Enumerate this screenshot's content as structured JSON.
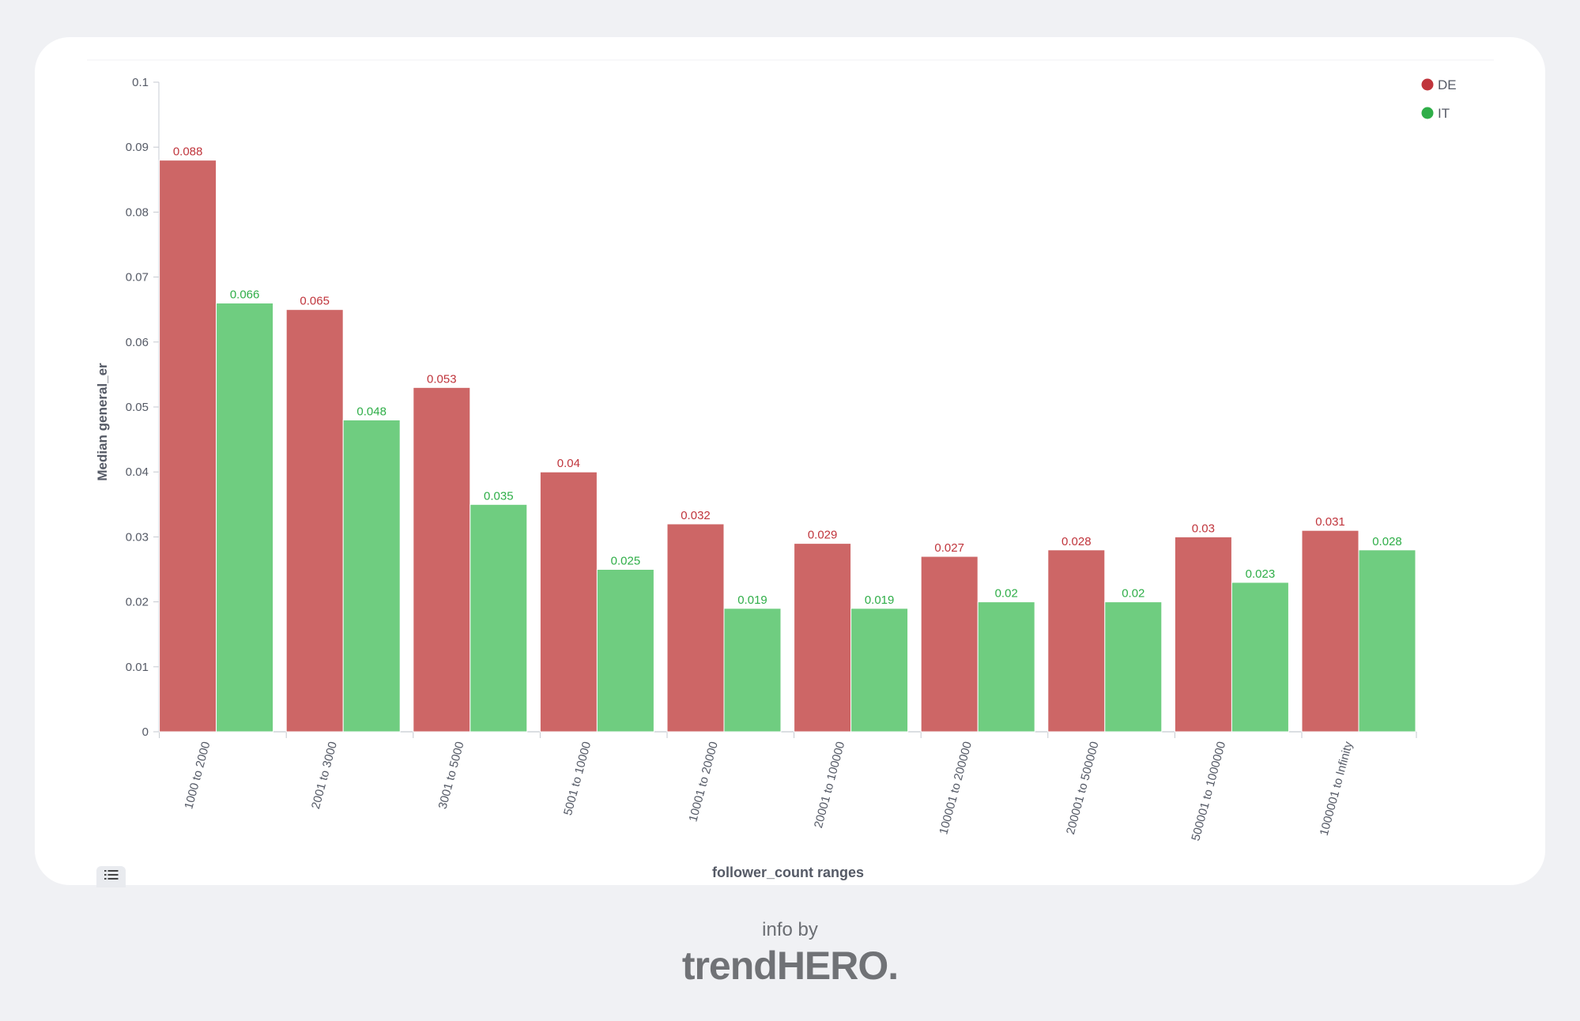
{
  "chart_data": {
    "type": "bar",
    "categories": [
      "1000 to 2000",
      "2001 to 3000",
      "3001 to 5000",
      "5001 to 10000",
      "10001 to 20000",
      "20001 to 100000",
      "100001 to 200000",
      "200001 to 500000",
      "500001 to 1000000",
      "1000001 to Infinity"
    ],
    "series": [
      {
        "name": "DE",
        "color": "#cd6666",
        "label_color": "#c0353c",
        "values": [
          0.088,
          0.065,
          0.053,
          0.04,
          0.032,
          0.029,
          0.027,
          0.028,
          0.03,
          0.031
        ],
        "labels": [
          "0.088",
          "0.065",
          "0.053",
          "0.04",
          "0.032",
          "0.029",
          "0.027",
          "0.028",
          "0.03",
          "0.031"
        ]
      },
      {
        "name": "IT",
        "color": "#6fcd80",
        "label_color": "#2fae48",
        "values": [
          0.066,
          0.048,
          0.035,
          0.025,
          0.019,
          0.019,
          0.02,
          0.02,
          0.023,
          0.028
        ],
        "labels": [
          "0.066",
          "0.048",
          "0.035",
          "0.025",
          "0.019",
          "0.019",
          "0.02",
          "0.02",
          "0.023",
          "0.028"
        ]
      }
    ],
    "yticks": [
      0,
      0.01,
      0.02,
      0.03,
      0.04,
      0.05,
      0.06,
      0.07,
      0.08,
      0.09,
      0.1
    ],
    "ytick_labels": [
      "0",
      "0.01",
      "0.02",
      "0.03",
      "0.04",
      "0.05",
      "0.06",
      "0.07",
      "0.08",
      "0.09",
      "0.1"
    ],
    "ylim": [
      0,
      0.1
    ],
    "xlabel": "follower_count ranges",
    "ylabel": "Median general_er",
    "legend_position": "top-right",
    "grid": false
  },
  "footer": {
    "caption": "info by",
    "brand": "trendHERO."
  },
  "icons": {
    "legend_toggle": "list-icon"
  }
}
